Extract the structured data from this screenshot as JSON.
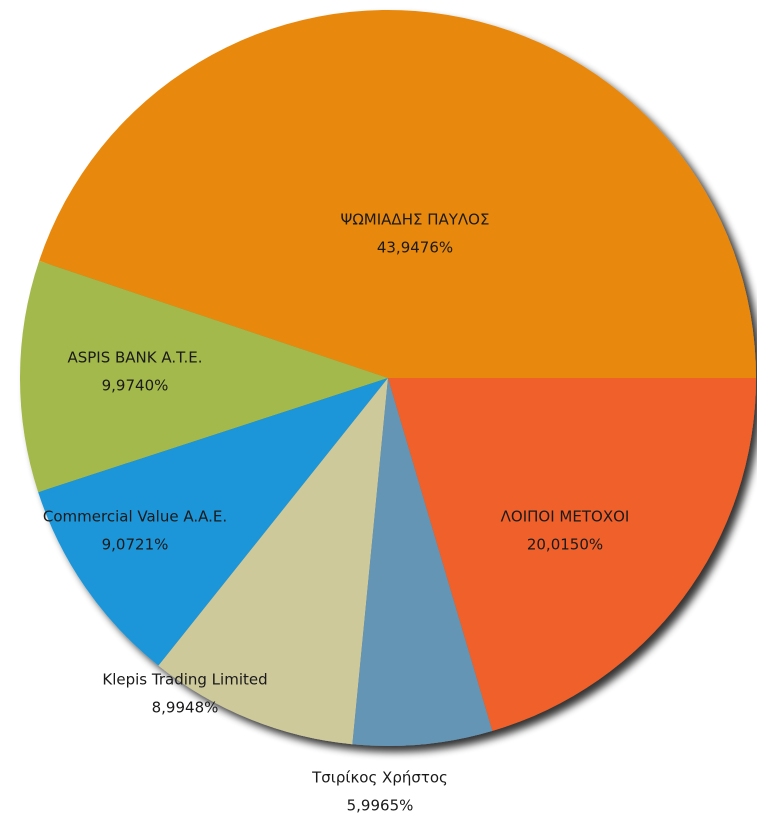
{
  "chart_data": {
    "type": "pie",
    "categories": [
      "ΨΩΜΙΑΔΗΣ ΠΑΥΛΟΣ",
      "ASPIS BANK A.T.E.",
      "Commercial Value A.A.E.",
      "Klepis Trading Limited",
      "Τσιρίκος  Χρήστος",
      "ΛΟΙΠΟΙ ΜΕΤΟΧΟΙ"
    ],
    "values": [
      43.9476,
      9.974,
      9.0721,
      8.9948,
      5.9965,
      20.015
    ],
    "value_labels": [
      "43,9476%",
      "9,9740%",
      "9,0721%",
      "8,9948%",
      "5,9965%",
      "20,0150%"
    ],
    "colors": [
      "#e8890b",
      "#a4b94b",
      "#1f96d8",
      "#cdc99b",
      "#6595b4",
      "#ef6029"
    ]
  }
}
